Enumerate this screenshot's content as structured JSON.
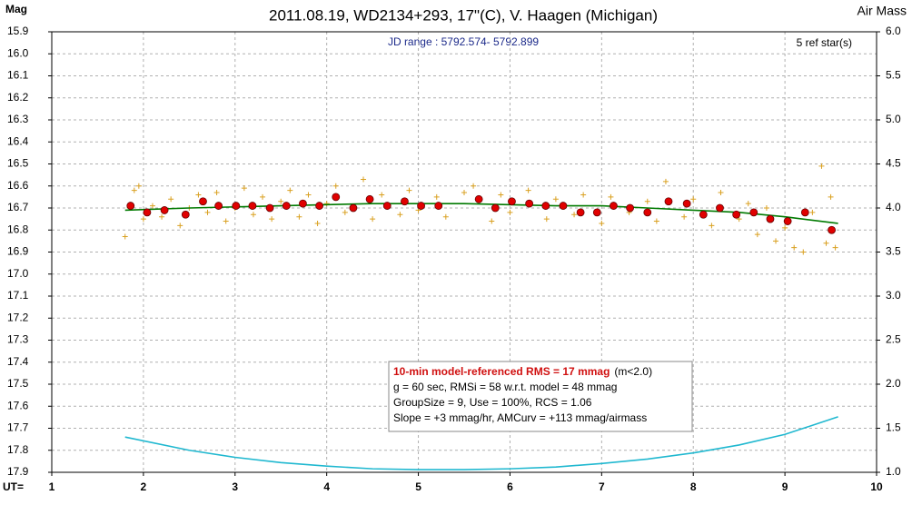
{
  "chart_data": {
    "type": "scatter",
    "title": "2011.08.19, WD2134+293, 17\"(C), V. Haagen (Michigan)",
    "y_label": "Mag",
    "y2_label": "Air Mass",
    "x_label": "UT=",
    "annotations": {
      "jd": "JD range : 5792.574- 5792.899",
      "ref": "5 ref star(s)",
      "rms": "10-min model-referenced RMS = 17 mmag",
      "rms_note": "(m<2.0)",
      "line2": "g = 60 sec, RMSi = 58 w.r.t. model = 48 mmag",
      "line3": "GroupSize = 9, Use = 100%, RCS = 1.06",
      "line4": "Slope = +3 mmag/hr, AMCurv = +113 mmag/airmass"
    },
    "xlim": [
      1,
      10
    ],
    "xticks": [
      1,
      2,
      3,
      4,
      5,
      6,
      7,
      8,
      9,
      10
    ],
    "ylim": [
      17.9,
      15.9
    ],
    "yticks": [
      15.9,
      {
        "value": 16,
        "label": "16.0"
      },
      16.1,
      16.2,
      16.3,
      16.4,
      16.5,
      16.6,
      16.7,
      16.8,
      16.9,
      {
        "value": 17,
        "label": "17.0"
      },
      17.1,
      17.2,
      17.3,
      17.4,
      17.5,
      17.6,
      17.7,
      17.8,
      17.9
    ],
    "y2lim": [
      1,
      6
    ],
    "y2ticks": [
      {
        "value": 1,
        "label": "1.0"
      },
      1.5,
      {
        "value": 2,
        "label": "2.0"
      },
      2.5,
      {
        "value": 3,
        "label": "3.0"
      },
      3.5,
      {
        "value": 4,
        "label": "4.0"
      },
      4.5,
      {
        "value": 5,
        "label": "5.0"
      },
      5.5,
      {
        "value": 6,
        "label": "6.0"
      }
    ],
    "grid": true,
    "series": [
      {
        "style": "cross",
        "color": "#d9a020",
        "x": [
          1.8,
          1.85,
          1.9,
          1.95,
          2.0,
          2.1,
          2.2,
          2.3,
          2.4,
          2.5,
          2.6,
          2.7,
          2.8,
          2.9,
          3.0,
          3.1,
          3.2,
          3.3,
          3.4,
          3.5,
          3.6,
          3.7,
          3.8,
          3.9,
          4.0,
          4.1,
          4.2,
          4.4,
          4.5,
          4.6,
          4.8,
          4.9,
          5.0,
          5.2,
          5.3,
          5.5,
          5.6,
          5.8,
          5.9,
          6.0,
          6.2,
          6.4,
          6.5,
          6.7,
          6.8,
          7.0,
          7.1,
          7.3,
          7.5,
          7.6,
          7.7,
          7.9,
          8.0,
          8.2,
          8.3,
          8.5,
          8.6,
          8.7,
          8.8,
          8.9,
          9.0,
          9.1,
          9.2,
          9.3,
          9.4,
          9.45,
          9.5,
          9.55
        ],
        "values": [
          16.83,
          16.7,
          16.62,
          16.6,
          16.75,
          16.69,
          16.74,
          16.66,
          16.78,
          16.7,
          16.64,
          16.72,
          16.63,
          16.76,
          16.7,
          16.61,
          16.73,
          16.65,
          16.75,
          16.67,
          16.62,
          16.74,
          16.64,
          16.77,
          16.68,
          16.6,
          16.72,
          16.57,
          16.75,
          16.64,
          16.73,
          16.62,
          16.71,
          16.65,
          16.74,
          16.63,
          16.6,
          16.76,
          16.64,
          16.72,
          16.62,
          16.75,
          16.66,
          16.73,
          16.64,
          16.77,
          16.65,
          16.72,
          16.67,
          16.76,
          16.58,
          16.74,
          16.66,
          16.78,
          16.63,
          16.75,
          16.68,
          16.82,
          16.7,
          16.85,
          16.79,
          16.88,
          16.9,
          16.72,
          16.51,
          16.86,
          16.65,
          16.88
        ]
      },
      {
        "style": "line",
        "color": "#007a00",
        "x": [
          1.8,
          2.5,
          3.5,
          4.5,
          5.5,
          6.5,
          7.0,
          7.5,
          8.0,
          8.5,
          9.0,
          9.58
        ],
        "values": [
          16.71,
          16.7,
          16.69,
          16.68,
          16.68,
          16.69,
          16.69,
          16.7,
          16.71,
          16.72,
          16.74,
          16.77
        ]
      },
      {
        "style": "dot",
        "color": "#e00000",
        "x": [
          1.86,
          2.04,
          2.23,
          2.46,
          2.65,
          2.82,
          3.01,
          3.19,
          3.38,
          3.56,
          3.74,
          3.92,
          4.1,
          4.29,
          4.47,
          4.66,
          4.85,
          5.03,
          5.22,
          5.66,
          5.84,
          6.02,
          6.21,
          6.39,
          6.58,
          6.77,
          6.95,
          7.13,
          7.31,
          7.5,
          7.73,
          7.93,
          8.11,
          8.29,
          8.47,
          8.66,
          8.84,
          9.03,
          9.22,
          9.51
        ],
        "values": [
          16.69,
          16.72,
          16.71,
          16.73,
          16.67,
          16.69,
          16.69,
          16.69,
          16.7,
          16.69,
          16.68,
          16.69,
          16.65,
          16.7,
          16.66,
          16.69,
          16.67,
          16.69,
          16.69,
          16.66,
          16.7,
          16.67,
          16.68,
          16.69,
          16.69,
          16.72,
          16.72,
          16.69,
          16.7,
          16.72,
          16.67,
          16.68,
          16.73,
          16.7,
          16.73,
          16.72,
          16.75,
          16.76,
          16.72,
          16.8
        ]
      },
      {
        "style": "line",
        "color": "#20b8d0",
        "axis": "y2",
        "x": [
          1.8,
          2.5,
          3.0,
          3.5,
          4.0,
          4.5,
          5.0,
          5.5,
          6.0,
          6.5,
          7.0,
          7.5,
          8.0,
          8.5,
          9.0,
          9.58
        ],
        "values": [
          1.4,
          1.25,
          1.17,
          1.11,
          1.07,
          1.04,
          1.03,
          1.03,
          1.04,
          1.06,
          1.1,
          1.15,
          1.22,
          1.31,
          1.43,
          1.63
        ]
      }
    ]
  }
}
